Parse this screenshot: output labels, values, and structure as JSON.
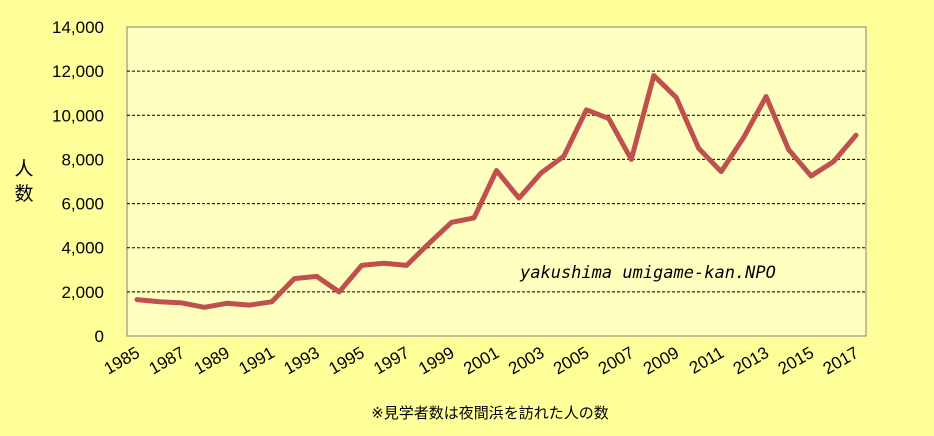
{
  "chart_data": {
    "type": "line",
    "ylabel": "人数",
    "xlabel": "",
    "ylim": [
      0,
      14000
    ],
    "yticks": [
      "0",
      "2,000",
      "4,000",
      "6,000",
      "8,000",
      "10,000",
      "12,000",
      "14,000"
    ],
    "ytick_values": [
      0,
      2000,
      4000,
      6000,
      8000,
      10000,
      12000,
      14000
    ],
    "xticks": [
      "1985",
      "1987",
      "1989",
      "1991",
      "1993",
      "1995",
      "1997",
      "1999",
      "2001",
      "2003",
      "2005",
      "2007",
      "2009",
      "2011",
      "2013",
      "2015",
      "2017"
    ],
    "grid": true,
    "annotation": "yakushima umigame-kan.NPO",
    "footnote": "※見学者数は夜間浜を訪れた人の数",
    "series": [
      {
        "color": "#c0504d",
        "x": [
          1985,
          1986,
          1987,
          1988,
          1989,
          1990,
          1991,
          1992,
          1993,
          1994,
          1995,
          1996,
          1997,
          1998,
          1999,
          2000,
          2001,
          2002,
          2003,
          2004,
          2005,
          2006,
          2007,
          2008,
          2009,
          2010,
          2011,
          2012,
          2013,
          2014,
          2015,
          2016,
          2017
        ],
        "values": [
          1650,
          1550,
          1500,
          1300,
          1480,
          1400,
          1550,
          2600,
          2700,
          2000,
          3200,
          3300,
          3200,
          4200,
          5150,
          5350,
          7500,
          6250,
          7400,
          8150,
          10250,
          9850,
          8000,
          11800,
          10800,
          8500,
          7450,
          9000,
          10850,
          8450,
          7250,
          7900,
          9100
        ]
      }
    ]
  }
}
